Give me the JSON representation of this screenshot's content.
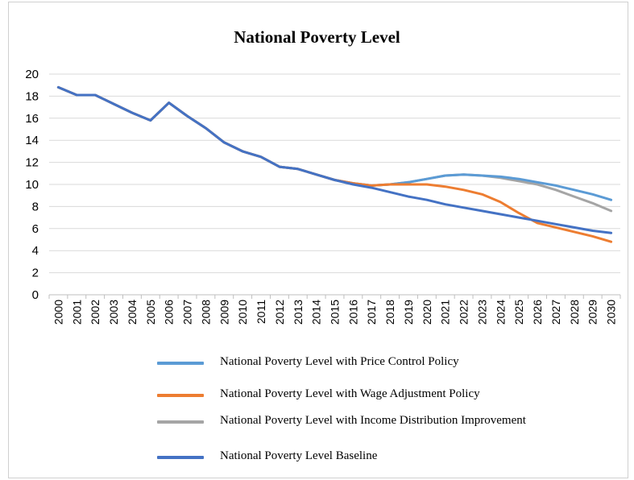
{
  "chart_data": {
    "type": "line",
    "title": "National Poverty Level",
    "xlabel": "",
    "ylabel": "",
    "ylim": [
      0,
      20
    ],
    "yticks": [
      "0",
      "2",
      "4",
      "6",
      "8",
      "10",
      "12",
      "14",
      "16",
      "18",
      "20"
    ],
    "grid": true,
    "legend_position": "bottom",
    "categories": [
      "2000",
      "2001",
      "2002",
      "2003",
      "2004",
      "2005",
      "2006",
      "2007",
      "2008",
      "2009",
      "2010",
      "2011",
      "2012",
      "2013",
      "2014",
      "2015",
      "2016",
      "2017",
      "2018",
      "2019",
      "2020",
      "2021",
      "2022",
      "2023",
      "2024",
      "2025",
      "2026",
      "2027",
      "2028",
      "2029",
      "2030"
    ],
    "series": [
      {
        "name": "National Poverty Level with Price Control Policy",
        "color": "#5b9bd5",
        "values": [
          18.8,
          18.1,
          18.1,
          17.3,
          16.5,
          15.8,
          17.4,
          16.2,
          15.1,
          13.8,
          13.0,
          12.5,
          11.6,
          11.4,
          10.9,
          10.4,
          10.1,
          9.9,
          10.0,
          10.2,
          10.5,
          10.8,
          10.9,
          10.8,
          10.7,
          10.5,
          10.2,
          9.9,
          9.5,
          9.1,
          8.6
        ]
      },
      {
        "name": "National Poverty Level with Wage Adjustment Policy",
        "color": "#ed7d31",
        "values": [
          18.8,
          18.1,
          18.1,
          17.3,
          16.5,
          15.8,
          17.4,
          16.2,
          15.1,
          13.8,
          13.0,
          12.5,
          11.6,
          11.4,
          10.9,
          10.4,
          10.1,
          9.9,
          10.0,
          10.0,
          10.0,
          9.8,
          9.5,
          9.1,
          8.4,
          7.4,
          6.5,
          6.1,
          5.7,
          5.3,
          4.8
        ]
      },
      {
        "name": "National Poverty Level with Income Distribution Improvement",
        "color": "#a5a5a5",
        "values": [
          18.8,
          18.1,
          18.1,
          17.3,
          16.5,
          15.8,
          17.4,
          16.2,
          15.1,
          13.8,
          13.0,
          12.5,
          11.6,
          11.4,
          10.9,
          10.4,
          10.1,
          9.9,
          10.0,
          10.2,
          10.5,
          10.8,
          10.9,
          10.8,
          10.6,
          10.3,
          10.0,
          9.5,
          8.9,
          8.3,
          7.6
        ]
      },
      {
        "name": "National Poverty Level Baseline",
        "color": "#4472c4",
        "values": [
          18.8,
          18.1,
          18.1,
          17.3,
          16.5,
          15.8,
          17.4,
          16.2,
          15.1,
          13.8,
          13.0,
          12.5,
          11.6,
          11.4,
          10.9,
          10.4,
          10.0,
          9.7,
          9.3,
          8.9,
          8.6,
          8.2,
          7.9,
          7.6,
          7.3,
          7.0,
          6.7,
          6.4,
          6.1,
          5.8,
          5.6
        ]
      }
    ]
  }
}
